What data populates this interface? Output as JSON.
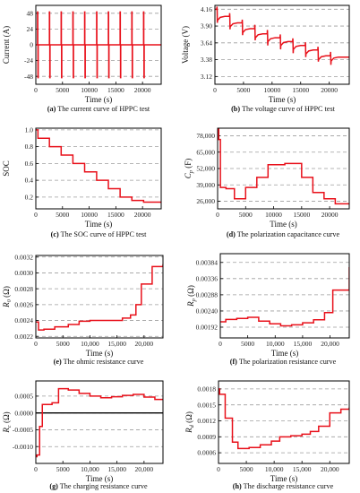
{
  "colors": {
    "series": "#e8101a",
    "grid": "#9e9e9e",
    "axis": "#000000",
    "zero_line": "#000000"
  },
  "chart_data": [
    {
      "id": "a",
      "type": "line",
      "caption_tag": "(a)",
      "caption_text": "The current curve of HPPC test",
      "xlabel": "Time (s)",
      "ylabel": "Current (A)",
      "xlim": [
        0,
        23500
      ],
      "ylim": [
        -60,
        60
      ],
      "xticks": [
        0,
        5000,
        10000,
        15000,
        20000
      ],
      "xtick_labels": [
        "0",
        "5000",
        "10000",
        "15000",
        "20000"
      ],
      "yticks": [
        48,
        24,
        0,
        -24,
        -48
      ],
      "ytick_labels": [
        "48",
        "24",
        "0",
        "-24",
        "-48"
      ],
      "grid": "y-dashed",
      "pulse_times": [
        330,
        2550,
        4750,
        6950,
        9150,
        11400,
        13600,
        15800,
        18000,
        20200
      ],
      "pulse_values": [
        50,
        -50
      ],
      "baseline": 0
    },
    {
      "id": "b",
      "type": "line",
      "caption_tag": "(b)",
      "caption_text": "The voltage curve of HPPC test",
      "xlabel": "Time (s)",
      "ylabel": "Voltage (V)",
      "xlim": [
        0,
        23500
      ],
      "ylim": [
        3.0,
        4.22
      ],
      "xticks": [
        0,
        5000,
        10000,
        15000,
        20000
      ],
      "xtick_labels": [
        "0",
        "5000",
        "10000",
        "15000",
        "20000"
      ],
      "yticks": [
        4.16,
        3.9,
        3.64,
        3.38,
        3.12
      ],
      "ytick_labels": [
        "4.16",
        "3.90",
        "3.64",
        "3.38",
        "3.12"
      ],
      "grid": "y-dashed",
      "pulse_times": [
        330,
        2550,
        4750,
        6950,
        9150,
        11400,
        13600,
        15800,
        18000,
        20200
      ],
      "rest_voltage": [
        4.16,
        4.05,
        3.95,
        3.86,
        3.78,
        3.72,
        3.66,
        3.6,
        3.53,
        3.44,
        3.42
      ],
      "spike_up": [
        4.2,
        4.1,
        4.0,
        3.92,
        3.84,
        3.77,
        3.71,
        3.65,
        3.58,
        3.5
      ],
      "spike_down": [
        3.95,
        3.85,
        3.76,
        3.68,
        3.6,
        3.54,
        3.48,
        3.42,
        3.35,
        3.3
      ]
    },
    {
      "id": "c",
      "type": "line",
      "step": true,
      "caption_tag": "(c)",
      "caption_text": "The SOC curve of HPPC test",
      "xlabel": "Time (s)",
      "ylabel": "SOC",
      "xlim": [
        0,
        23500
      ],
      "ylim": [
        0.06,
        1.02
      ],
      "xticks": [
        0,
        5000,
        10000,
        15000,
        20000
      ],
      "xtick_labels": [
        "0",
        "5000",
        "10000",
        "15000",
        "20000"
      ],
      "yticks": [
        1.0,
        0.8,
        0.6,
        0.4,
        0.2
      ],
      "ytick_labels": [
        "1.0",
        "0.8",
        "0.6",
        "0.4",
        "0.2"
      ],
      "grid": "y-dashed",
      "x": [
        0,
        330,
        400,
        2550,
        4750,
        6950,
        9150,
        11400,
        13600,
        15800,
        18000,
        20200,
        23500
      ],
      "y": [
        1.0,
        1.0,
        0.9,
        0.8,
        0.7,
        0.6,
        0.5,
        0.4,
        0.3,
        0.2,
        0.16,
        0.14,
        0.13
      ]
    },
    {
      "id": "d",
      "type": "line",
      "step": true,
      "caption_tag": "(d)",
      "caption_text": "The polarization capacitance curve",
      "xlabel": "Time (s)",
      "ylabel_main": "C",
      "ylabel_sub": "p",
      "ylabel_unit": " (F)",
      "xlim": [
        0,
        23500
      ],
      "ylim": [
        20000,
        84000
      ],
      "xticks": [
        0,
        5000,
        10000,
        15000,
        20000
      ],
      "xtick_labels": [
        "0",
        "5000",
        "10000",
        "15000",
        "20000"
      ],
      "yticks": [
        78000,
        65000,
        52000,
        39000,
        26000
      ],
      "ytick_labels": [
        "78,000",
        "65,000",
        "52,000",
        "39,000",
        "26,000"
      ],
      "grid": "y-dashed",
      "x": [
        0,
        200,
        500,
        1500,
        3000,
        5000,
        7000,
        9000,
        12000,
        15000,
        17000,
        19000,
        21000,
        23500
      ],
      "y": [
        84000,
        75000,
        37000,
        36000,
        28000,
        37000,
        45000,
        55000,
        56000,
        45000,
        33000,
        28000,
        24000,
        23500
      ]
    },
    {
      "id": "e",
      "type": "line",
      "step": true,
      "caption_tag": "(e)",
      "caption_text": "The ohmic resistance curve",
      "xlabel": "Time (s)",
      "ylabel_main": "R",
      "ylabel_sub": "0",
      "ylabel_unit": " (Ω)",
      "xlim": [
        0,
        23500
      ],
      "ylim": [
        0.00218,
        0.00322
      ],
      "xticks": [
        0,
        5000,
        10000,
        15000,
        20000
      ],
      "xtick_labels": [
        "0",
        "5000",
        "10,000",
        "15,000",
        "20,000"
      ],
      "yticks": [
        0.0032,
        0.003,
        0.0028,
        0.0026,
        0.0024,
        0.0022
      ],
      "ytick_labels": [
        "0.0032",
        "0.0030",
        "0.0028",
        "0.0026",
        "0.0024",
        "0.0022"
      ],
      "grid": "y-dashed",
      "x": [
        0,
        500,
        1500,
        3500,
        6000,
        8000,
        10000,
        12000,
        16000,
        17500,
        18500,
        19500,
        21500,
        23500
      ],
      "y": [
        0.00238,
        0.00228,
        0.00229,
        0.00232,
        0.00235,
        0.00239,
        0.0024,
        0.0024,
        0.00243,
        0.00247,
        0.0026,
        0.00286,
        0.00308,
        0.00311
      ]
    },
    {
      "id": "f",
      "type": "line",
      "step": true,
      "caption_tag": "(f)",
      "caption_text": "The polarization resistance curve",
      "xlabel": "Time (s)",
      "ylabel_main": "R",
      "ylabel_sub": "p",
      "ylabel_unit": " (Ω)",
      "xlim": [
        0,
        23500
      ],
      "ylim": [
        0.0016,
        0.0041
      ],
      "xticks": [
        0,
        5000,
        10000,
        15000,
        20000
      ],
      "xtick_labels": [
        "0",
        "5000",
        "10,000",
        "15,000",
        "20,000"
      ],
      "yticks": [
        0.00384,
        0.00336,
        0.00288,
        0.0024,
        0.00192
      ],
      "ytick_labels": [
        "0.00384",
        "0.00336",
        "0.00288",
        "0.00240",
        "0.00192"
      ],
      "grid": "y-dashed",
      "x": [
        0,
        1000,
        3000,
        5000,
        7000,
        9000,
        11000,
        13000,
        15000,
        17000,
        19000,
        20500,
        23500
      ],
      "y": [
        0.00208,
        0.00215,
        0.00218,
        0.00221,
        0.0021,
        0.00202,
        0.00196,
        0.00199,
        0.00205,
        0.00214,
        0.00235,
        0.00302,
        0.0037
      ]
    },
    {
      "id": "g",
      "type": "line",
      "step": true,
      "caption_tag": "(g)",
      "caption_text": "The charging resistance curve",
      "xlabel": "Time (s)",
      "ylabel_main": "R",
      "ylabel_sub": "c",
      "ylabel_unit": " (Ω)",
      "xlim": [
        0,
        23500
      ],
      "ylim": [
        -0.0015,
        0.00095
      ],
      "xticks": [
        0,
        5000,
        10000,
        15000,
        20000
      ],
      "xtick_labels": [
        "0",
        "5000",
        "10,000",
        "15,000",
        "20,000"
      ],
      "yticks": [
        0.0005,
        0.0,
        -0.0005,
        -0.001
      ],
      "ytick_labels": [
        "0.0005",
        "0.0000",
        "-0.0005",
        "-0.0010"
      ],
      "grid": "y-dashed",
      "zero_line": 0,
      "x": [
        0,
        200,
        700,
        1200,
        3000,
        4200,
        6000,
        8000,
        10000,
        12000,
        14000,
        16000,
        18000,
        20000,
        22000,
        23500
      ],
      "y": [
        -0.0013,
        -0.00125,
        -0.0004,
        0.00025,
        0.0003,
        0.00072,
        0.00068,
        0.00058,
        0.0005,
        0.00045,
        0.00048,
        0.00052,
        0.00055,
        0.00047,
        0.0004,
        0.00038
      ]
    },
    {
      "id": "h",
      "type": "line",
      "step": true,
      "caption_tag": "(h)",
      "caption_text": "The discharge resistance curve",
      "xlabel": "Time (s)",
      "ylabel_main": "R",
      "ylabel_sub": "d",
      "ylabel_unit": " (Ω)",
      "xlim": [
        0,
        23500
      ],
      "ylim": [
        0.0004,
        0.00195
      ],
      "xticks": [
        0,
        5000,
        10000,
        15000,
        20000
      ],
      "xtick_labels": [
        "0",
        "5000",
        "10,000",
        "15,000",
        "20,000"
      ],
      "yticks": [
        0.0018,
        0.0015,
        0.0012,
        0.0009,
        0.0006
      ],
      "ytick_labels": [
        "0.0018",
        "0.0015",
        "0.0012",
        "0.0009",
        "0.0006"
      ],
      "grid": "y-dashed",
      "x": [
        0,
        200,
        1200,
        2500,
        3500,
        5500,
        7500,
        9500,
        11000,
        13000,
        15000,
        16500,
        18000,
        20000,
        22000,
        23500
      ],
      "y": [
        0.0018,
        0.0017,
        0.00125,
        0.0008,
        0.00068,
        0.0007,
        0.00075,
        0.00082,
        0.0009,
        0.00092,
        0.00095,
        0.001,
        0.0011,
        0.00135,
        0.00142,
        0.00145
      ]
    }
  ]
}
